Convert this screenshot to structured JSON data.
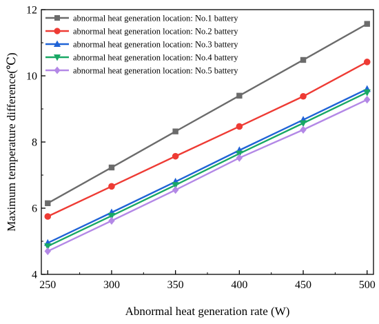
{
  "chart_data": {
    "type": "line",
    "title": "",
    "xlabel": "Abnormal heat generation rate (W)",
    "ylabel": "Maximum temperature difference(℃)",
    "x": [
      250,
      300,
      350,
      400,
      450,
      500
    ],
    "xlim": [
      245,
      505
    ],
    "ylim": [
      4,
      12
    ],
    "x_ticks": [
      250,
      300,
      350,
      400,
      450,
      500
    ],
    "y_ticks": [
      4,
      6,
      8,
      10,
      12
    ],
    "grid": false,
    "legend_position": "top-left",
    "series": [
      {
        "name": "abnormal heat generation location: No.1 battery",
        "color": "#6b6b6b",
        "marker": "square",
        "values": [
          6.15,
          7.23,
          8.32,
          9.4,
          10.48,
          11.57
        ]
      },
      {
        "name": "abnormal heat generation location: No.2 battery",
        "color": "#ee3b34",
        "marker": "circle",
        "values": [
          5.75,
          6.66,
          7.57,
          8.47,
          9.38,
          10.42
        ]
      },
      {
        "name": "abnormal heat generation location: No.3 battery",
        "color": "#1f63d6",
        "marker": "triangle-up",
        "values": [
          4.95,
          5.87,
          6.8,
          7.75,
          8.67,
          9.6
        ]
      },
      {
        "name": "abnormal heat generation location: No.4 battery",
        "color": "#19a865",
        "marker": "triangle-down",
        "values": [
          4.85,
          5.77,
          6.7,
          7.65,
          8.57,
          9.5
        ]
      },
      {
        "name": "abnormal heat generation location: No.5 battery",
        "color": "#b388e6",
        "marker": "diamond",
        "values": [
          4.7,
          5.62,
          6.55,
          7.52,
          8.37,
          9.28
        ]
      }
    ]
  }
}
